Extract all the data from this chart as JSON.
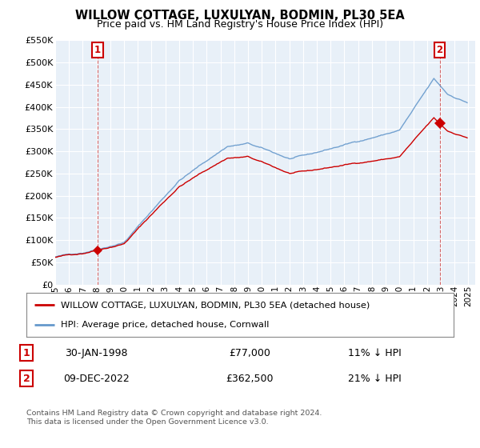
{
  "title": "WILLOW COTTAGE, LUXULYAN, BODMIN, PL30 5EA",
  "subtitle": "Price paid vs. HM Land Registry's House Price Index (HPI)",
  "sale1_label": "30-JAN-1998",
  "sale1_price": 77000,
  "sale1_year": 1998.08,
  "sale1_hpi_note": "11% ↓ HPI",
  "sale2_label": "09-DEC-2022",
  "sale2_price": 362500,
  "sale2_year": 2022.92,
  "sale2_hpi_note": "21% ↓ HPI",
  "legend_house": "WILLOW COTTAGE, LUXULYAN, BODMIN, PL30 5EA (detached house)",
  "legend_hpi": "HPI: Average price, detached house, Cornwall",
  "footer": "Contains HM Land Registry data © Crown copyright and database right 2024.\nThis data is licensed under the Open Government Licence v3.0.",
  "house_color": "#cc0000",
  "hpi_color": "#6699cc",
  "ylim": [
    0,
    550000
  ],
  "ytick_values": [
    0,
    50000,
    100000,
    150000,
    200000,
    250000,
    300000,
    350000,
    400000,
    450000,
    500000,
    550000
  ],
  "ytick_labels": [
    "£0",
    "£50K",
    "£100K",
    "£150K",
    "£200K",
    "£250K",
    "£300K",
    "£350K",
    "£400K",
    "£450K",
    "£500K",
    "£550K"
  ],
  "xlim_start": 1995.0,
  "xlim_end": 2025.5,
  "chart_bg": "#e8f0f8",
  "background_color": "#ffffff",
  "grid_color": "#ffffff"
}
